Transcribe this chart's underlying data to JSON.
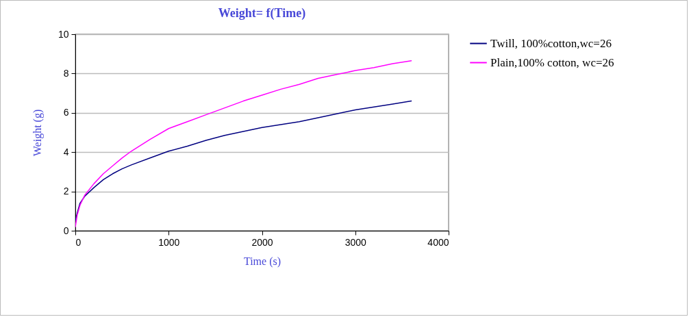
{
  "chart_data": {
    "type": "line",
    "title": "Weight= f(Time)",
    "xlabel": "Time (s)",
    "ylabel": "Weight (g)",
    "xlim": [
      0,
      4000
    ],
    "xticks": [
      0,
      1000,
      2000,
      3000,
      4000
    ],
    "ylim": [
      0,
      10
    ],
    "yticks": [
      0,
      2,
      4,
      6,
      8,
      10
    ],
    "grid": "y",
    "legend": "right",
    "series": [
      {
        "name": "Twill, 100%cotton,wc=26",
        "color": "#000080",
        "x": [
          0,
          20,
          50,
          100,
          200,
          300,
          400,
          500,
          600,
          800,
          1000,
          1200,
          1400,
          1600,
          1800,
          2000,
          2200,
          2400,
          2600,
          2800,
          3000,
          3200,
          3400,
          3600
        ],
        "values": [
          0.5,
          0.9,
          1.4,
          1.75,
          2.2,
          2.6,
          2.9,
          3.15,
          3.35,
          3.7,
          4.05,
          4.3,
          4.6,
          4.85,
          5.05,
          5.25,
          5.4,
          5.55,
          5.75,
          5.95,
          6.15,
          6.3,
          6.45,
          6.6
        ]
      },
      {
        "name": "Plain,100% cotton, wc=26",
        "color": "#ff00ff",
        "x": [
          0,
          20,
          50,
          100,
          200,
          300,
          400,
          500,
          600,
          800,
          1000,
          1200,
          1400,
          1600,
          1800,
          2000,
          2200,
          2400,
          2600,
          2800,
          3000,
          3200,
          3400,
          3600
        ],
        "values": [
          0.2,
          0.8,
          1.3,
          1.8,
          2.4,
          2.9,
          3.3,
          3.7,
          4.05,
          4.65,
          5.2,
          5.55,
          5.9,
          6.25,
          6.6,
          6.9,
          7.2,
          7.45,
          7.75,
          7.95,
          8.15,
          8.3,
          8.5,
          8.65
        ]
      }
    ]
  }
}
